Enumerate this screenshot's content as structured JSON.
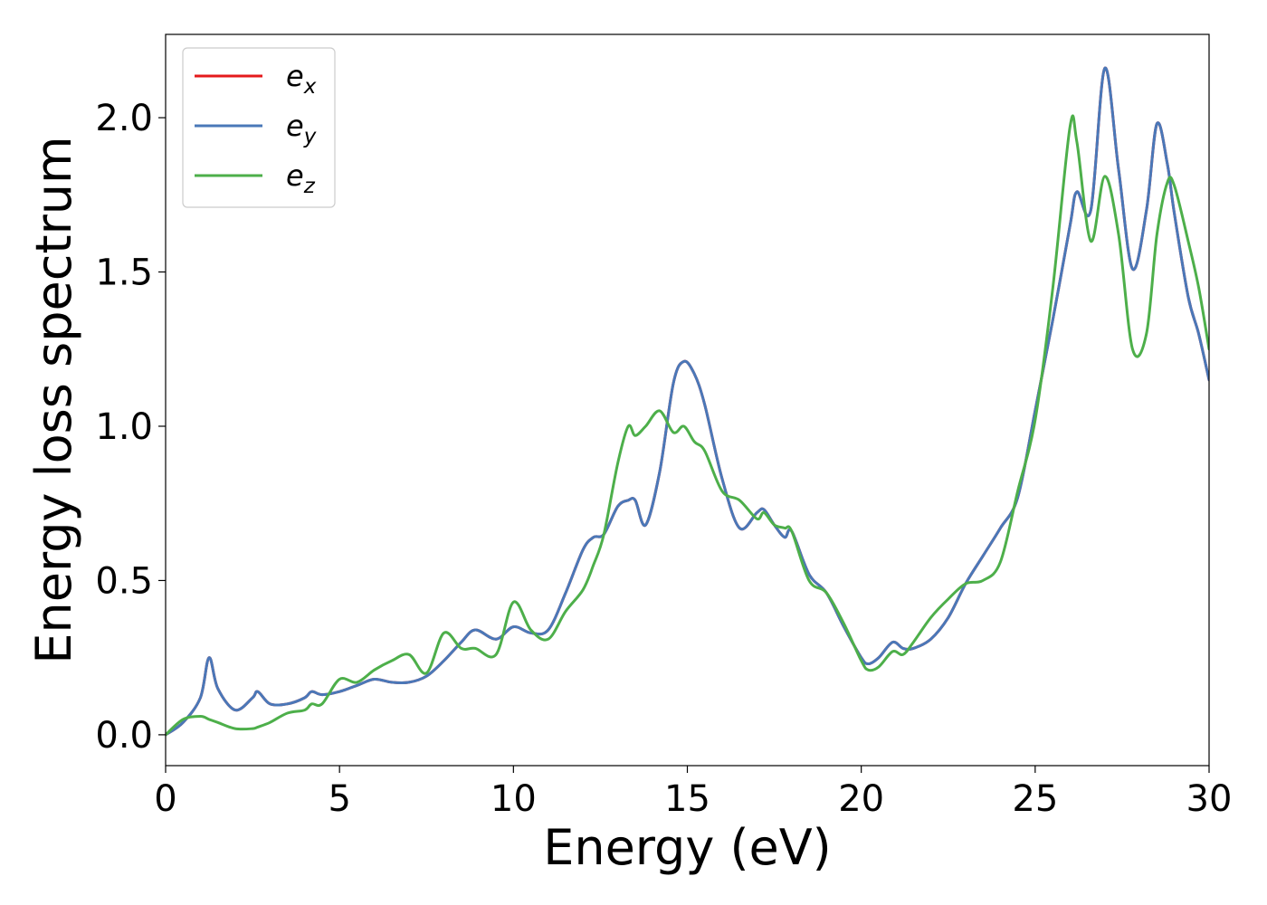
{
  "chart_data": {
    "type": "line",
    "title": "",
    "xlabel": "Energy (eV)",
    "ylabel": "Energy loss spectrum",
    "xlim": [
      0,
      30
    ],
    "ylim": [
      -0.1,
      2.27
    ],
    "xticks": [
      0,
      5,
      10,
      15,
      20,
      25,
      30
    ],
    "xtick_labels": [
      "0",
      "5",
      "10",
      "15",
      "20",
      "25",
      "30"
    ],
    "yticks": [
      0.0,
      0.5,
      1.0,
      1.5,
      2.0
    ],
    "ytick_labels": [
      "0.0",
      "0.5",
      "1.0",
      "1.5",
      "2.0"
    ],
    "grid": false,
    "legend_position": "top-left",
    "x": [
      0,
      0.5,
      1.0,
      1.25,
      1.5,
      2.0,
      2.5,
      2.65,
      3.0,
      3.5,
      4.0,
      4.2,
      4.5,
      5.0,
      5.5,
      6.0,
      6.5,
      7.0,
      7.5,
      8.0,
      8.5,
      8.9,
      9.5,
      10.0,
      10.5,
      11.0,
      11.5,
      12.0,
      12.3,
      12.6,
      13.0,
      13.3,
      13.5,
      13.8,
      14.2,
      14.6,
      14.9,
      15.2,
      15.5,
      16.0,
      16.5,
      17.0,
      17.2,
      17.5,
      17.8,
      18.0,
      18.5,
      19.0,
      19.5,
      20.0,
      20.2,
      20.5,
      20.9,
      21.2,
      21.5,
      22.0,
      22.5,
      23.0,
      23.5,
      24.0,
      24.5,
      25.0,
      25.5,
      26.0,
      26.2,
      26.6,
      27.0,
      27.4,
      27.8,
      28.2,
      28.5,
      28.8,
      29.0,
      29.4,
      29.7,
      30.0
    ],
    "series": [
      {
        "name": "e_x",
        "label_base": "e",
        "label_sub": "x",
        "color": "#e41a1c",
        "values": [
          0,
          0.04,
          0.12,
          0.25,
          0.15,
          0.08,
          0.12,
          0.14,
          0.1,
          0.1,
          0.12,
          0.14,
          0.13,
          0.14,
          0.16,
          0.18,
          0.17,
          0.17,
          0.19,
          0.24,
          0.3,
          0.34,
          0.31,
          0.35,
          0.33,
          0.34,
          0.46,
          0.6,
          0.64,
          0.65,
          0.74,
          0.76,
          0.76,
          0.68,
          0.85,
          1.14,
          1.21,
          1.17,
          1.07,
          0.83,
          0.67,
          0.72,
          0.73,
          0.68,
          0.64,
          0.66,
          0.52,
          0.46,
          0.35,
          0.25,
          0.23,
          0.25,
          0.3,
          0.28,
          0.28,
          0.31,
          0.38,
          0.49,
          0.58,
          0.67,
          0.77,
          1.05,
          1.34,
          1.65,
          1.76,
          1.7,
          2.16,
          1.83,
          1.51,
          1.7,
          1.98,
          1.85,
          1.69,
          1.42,
          1.3,
          1.15
        ]
      },
      {
        "name": "e_y",
        "label_base": "e",
        "label_sub": "y",
        "color": "#4a78b8",
        "values": [
          0,
          0.04,
          0.12,
          0.25,
          0.15,
          0.08,
          0.12,
          0.14,
          0.1,
          0.1,
          0.12,
          0.14,
          0.13,
          0.14,
          0.16,
          0.18,
          0.17,
          0.17,
          0.19,
          0.24,
          0.3,
          0.34,
          0.31,
          0.35,
          0.33,
          0.34,
          0.46,
          0.6,
          0.64,
          0.65,
          0.74,
          0.76,
          0.76,
          0.68,
          0.85,
          1.14,
          1.21,
          1.17,
          1.07,
          0.83,
          0.67,
          0.72,
          0.73,
          0.68,
          0.64,
          0.66,
          0.52,
          0.46,
          0.35,
          0.25,
          0.23,
          0.25,
          0.3,
          0.28,
          0.28,
          0.31,
          0.38,
          0.49,
          0.58,
          0.67,
          0.77,
          1.05,
          1.34,
          1.65,
          1.76,
          1.7,
          2.16,
          1.83,
          1.51,
          1.7,
          1.98,
          1.85,
          1.69,
          1.42,
          1.3,
          1.15
        ]
      },
      {
        "name": "e_z",
        "label_base": "e",
        "label_sub": "z",
        "color": "#4daf4a",
        "values": [
          0,
          0.05,
          0.06,
          0.05,
          0.04,
          0.02,
          0.02,
          0.025,
          0.04,
          0.07,
          0.08,
          0.1,
          0.1,
          0.18,
          0.17,
          0.21,
          0.24,
          0.26,
          0.2,
          0.33,
          0.28,
          0.28,
          0.26,
          0.43,
          0.34,
          0.31,
          0.4,
          0.47,
          0.55,
          0.65,
          0.88,
          1.0,
          0.97,
          1.0,
          1.05,
          0.98,
          1.0,
          0.95,
          0.92,
          0.79,
          0.76,
          0.7,
          0.72,
          0.68,
          0.67,
          0.66,
          0.5,
          0.46,
          0.36,
          0.24,
          0.21,
          0.22,
          0.27,
          0.26,
          0.3,
          0.38,
          0.44,
          0.49,
          0.5,
          0.56,
          0.79,
          1.02,
          1.44,
          1.97,
          1.92,
          1.6,
          1.81,
          1.62,
          1.25,
          1.3,
          1.62,
          1.79,
          1.78,
          1.6,
          1.45,
          1.25
        ]
      }
    ]
  }
}
